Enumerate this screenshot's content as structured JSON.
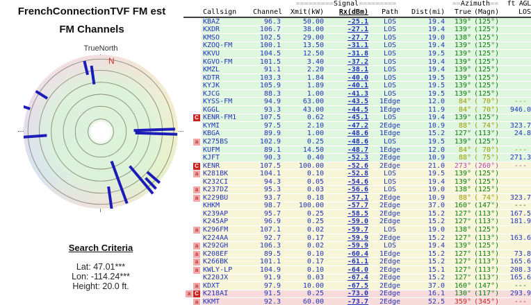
{
  "left_panel": {
    "title_line1": "FrenchConnectionTVF FM est",
    "title_line2": "FM Channels",
    "true_north_label": "TrueNorth",
    "north_marker": "N",
    "search": {
      "heading": "Search Criteria",
      "lat": "Lat: 47.01***",
      "lon": "Lon: -114.24***",
      "height": "Height: 20.0 ft."
    },
    "radar": {
      "rings": [
        0.17,
        0.34,
        0.5,
        0.66,
        0.82,
        0.97
      ],
      "needle_color": "#1c1cb8",
      "needles": [
        {
          "az": 347,
          "r0": 0.78,
          "r1": 0.97
        },
        {
          "az": 352,
          "r0": 0.64,
          "r1": 0.89
        },
        {
          "az": 302,
          "r0": 0.84,
          "r1": 1.02
        },
        {
          "az": 288,
          "r0": 0.99,
          "r1": 1.1
        },
        {
          "az": 266,
          "r0": 0.72,
          "r1": 1.06
        },
        {
          "az": 88,
          "r0": 0.44,
          "r1": 0.99
        },
        {
          "az": 92,
          "r0": 0.46,
          "r1": 1.02
        },
        {
          "az": 160,
          "r0": 0.42,
          "r1": 1.02
        },
        {
          "az": 140,
          "r0": 0.6,
          "r1": 1.08
        },
        {
          "az": 131,
          "r0": 0.82,
          "r1": 1.04
        },
        {
          "az": 136,
          "r0": 0.86,
          "r1": 1.06
        },
        {
          "az": 172,
          "r0": 0.74,
          "r1": 1.18
        }
      ]
    }
  },
  "table": {
    "header": {
      "signal_eq_left": "=========",
      "signal_label": "Signal",
      "signal_eq_right": "=========",
      "azimuth_eq_left": "==",
      "azimuth_label": "Azimuth",
      "azimuth_eq_right": "==",
      "ft_agl": "ft AGL",
      "columns": {
        "callsign": "Callsign",
        "channel": "Channel",
        "xmit": "Xmit(kW)",
        "rx": "Rx(dBm)",
        "path": "Path",
        "dist": "Dist(mi)",
        "true_az": "True",
        "magn": "(Magn)",
        "los": "LOS"
      }
    },
    "rows": [
      {
        "b": [],
        "cs": "KBAZ",
        "ch": "96.3",
        "xm": "50.00",
        "rx": "-25.1",
        "pa": "LOS",
        "di": "19.4",
        "tr": "139°",
        "mg": "(125°)",
        "agl": "",
        "t": "g",
        "ac": "green"
      },
      {
        "b": [],
        "cs": "KXDR",
        "ch": "106.7",
        "xm": "38.00",
        "rx": "-27.1",
        "pa": "LOS",
        "di": "19.4",
        "tr": "139°",
        "mg": "(125°)",
        "agl": "",
        "t": "g",
        "ac": "green"
      },
      {
        "b": [],
        "cs": "KMSO",
        "ch": "102.5",
        "xm": "29.00",
        "rx": "-27.7",
        "pa": "LOS",
        "di": "19.0",
        "tr": "138°",
        "mg": "(125°)",
        "agl": "",
        "t": "g",
        "ac": "green"
      },
      {
        "b": [],
        "cs": "KZOQ-FM",
        "ch": "100.1",
        "xm": "13.50",
        "rx": "-31.1",
        "pa": "LOS",
        "di": "19.4",
        "tr": "139°",
        "mg": "(125°)",
        "agl": "",
        "t": "g",
        "ac": "green"
      },
      {
        "b": [],
        "cs": "KKVU",
        "ch": "104.5",
        "xm": "12.50",
        "rx": "-31.8",
        "pa": "LOS",
        "di": "19.5",
        "tr": "139°",
        "mg": "(125°)",
        "agl": "",
        "t": "g",
        "ac": "green"
      },
      {
        "b": [],
        "cs": "KGVO-FM",
        "ch": "101.5",
        "xm": "3.40",
        "rx": "-37.2",
        "pa": "LOS",
        "di": "19.4",
        "tr": "139°",
        "mg": "(125°)",
        "agl": "",
        "t": "g",
        "ac": "green"
      },
      {
        "b": [],
        "cs": "KMZL",
        "ch": "91.1",
        "xm": "2.20",
        "rx": "-38.1",
        "pa": "LOS",
        "di": "19.4",
        "tr": "139°",
        "mg": "(125°)",
        "agl": "",
        "t": "g",
        "ac": "green"
      },
      {
        "b": [],
        "cs": "KDTR",
        "ch": "103.3",
        "xm": "1.84",
        "rx": "-40.0",
        "pa": "LOS",
        "di": "19.5",
        "tr": "139°",
        "mg": "(125°)",
        "agl": "",
        "t": "g",
        "ac": "green"
      },
      {
        "b": [],
        "cs": "KYJK",
        "ch": "105.9",
        "xm": "1.89",
        "rx": "-40.1",
        "pa": "LOS",
        "di": "19.5",
        "tr": "139°",
        "mg": "(125°)",
        "agl": "",
        "t": "g",
        "ac": "green"
      },
      {
        "b": [],
        "cs": "KJCG",
        "ch": "88.3",
        "xm": "1.00",
        "rx": "-41.3",
        "pa": "LOS",
        "di": "19.5",
        "tr": "139°",
        "mg": "(125°)",
        "agl": "",
        "t": "g",
        "ac": "green"
      },
      {
        "b": [],
        "cs": "KYSS-FM",
        "ch": "94.9",
        "xm": "63.00",
        "rx": "-43.5",
        "pa": "1Edge",
        "di": "12.0",
        "tr": "84°",
        "mg": "( 70°)",
        "agl": "--- ",
        "t": "g",
        "ac": "olive"
      },
      {
        "b": [],
        "cs": "KGGL",
        "ch": "93.3",
        "xm": "43.00",
        "rx": "-44.5",
        "pa": "1Edge",
        "di": "11.9",
        "tr": "84°",
        "mg": "( 70°)",
        "agl": "946.0",
        "t": "g",
        "ac": "olive"
      },
      {
        "b": [
          "C"
        ],
        "cs": "KENR-FM1",
        "ch": "107.5",
        "xm": "0.62",
        "rx": "-45.1",
        "pa": "LOS",
        "di": "19.4",
        "tr": "139°",
        "mg": "(125°)",
        "agl": "",
        "t": "g",
        "ac": "green"
      },
      {
        "b": [],
        "cs": "KYMI",
        "ch": "97.5",
        "xm": "2.10",
        "rx": "-47.2",
        "pa": "2Edge",
        "di": "10.9",
        "tr": "88°",
        "mg": "( 74°)",
        "agl": "323.7",
        "t": "g",
        "ac": "olive"
      },
      {
        "b": [],
        "cs": "KBGA",
        "ch": "89.9",
        "xm": "1.00",
        "rx": "-48.6",
        "pa": "1Edge",
        "di": "15.2",
        "tr": "127°",
        "mg": "(113°)",
        "agl": "24.8",
        "t": "g",
        "ac": "green"
      },
      {
        "b": [
          "a"
        ],
        "cs": "K275BS",
        "ch": "102.9",
        "xm": "0.25",
        "rx": "-48.6",
        "pa": "LOS",
        "di": "19.5",
        "tr": "139°",
        "mg": "(125°)",
        "agl": "",
        "t": "g",
        "ac": "green"
      },
      {
        "b": [],
        "cs": "KUFM",
        "ch": "89.1",
        "xm": "14.50",
        "rx": "-48.7",
        "pa": "1Edge",
        "di": "12.0",
        "tr": "84°",
        "mg": "( 70°)",
        "agl": "--- ",
        "t": "g",
        "ac": "olive"
      },
      {
        "b": [],
        "cs": "KJFT",
        "ch": "90.3",
        "xm": "0.40",
        "rx": "-52.3",
        "pa": "2Edge",
        "di": "10.9",
        "tr": "88°",
        "mg": "( 75°)",
        "agl": "271.3",
        "t": "g",
        "ac": "olive"
      },
      {
        "b": [
          "C"
        ],
        "cs": "KENR",
        "ch": "107.5",
        "xm": "100.00",
        "rx": "-52.6",
        "pa": "2Edge",
        "di": "21.0",
        "tr": "273°",
        "mg": "(260°)",
        "agl": "--- ",
        "t": "y",
        "ac": "magenta"
      },
      {
        "b": [
          "a"
        ],
        "cs": "K281BK",
        "ch": "104.1",
        "xm": "0.10",
        "rx": "-52.8",
        "pa": "LOS",
        "di": "19.5",
        "tr": "139°",
        "mg": "(125°)",
        "agl": "",
        "t": "y",
        "ac": "green"
      },
      {
        "b": [],
        "cs": "K232CI",
        "ch": "94.3",
        "xm": "0.05",
        "rx": "-54.6",
        "pa": "LOS",
        "di": "19.4",
        "tr": "139°",
        "mg": "(125°)",
        "agl": "",
        "t": "y",
        "ac": "green"
      },
      {
        "b": [
          "a"
        ],
        "cs": "K237DZ",
        "ch": "95.3",
        "xm": "0.03",
        "rx": "-56.6",
        "pa": "LOS",
        "di": "19.0",
        "tr": "138°",
        "mg": "(125°)",
        "agl": "",
        "t": "y",
        "ac": "green"
      },
      {
        "b": [
          "a"
        ],
        "cs": "K229BU",
        "ch": "93.7",
        "xm": "0.18",
        "rx": "-57.1",
        "pa": "2Edge",
        "di": "10.9",
        "tr": "88°",
        "mg": "( 74°)",
        "agl": "323.7",
        "t": "y",
        "ac": "olive"
      },
      {
        "b": [],
        "cs": "KHKM",
        "ch": "98.7",
        "xm": "100.00",
        "rx": "-57.7",
        "pa": "2Edge",
        "di": "37.0",
        "tr": "160°",
        "mg": "(147°)",
        "agl": "--- ",
        "t": "y",
        "ac": "green"
      },
      {
        "b": [],
        "cs": "K239AP",
        "ch": "95.7",
        "xm": "0.25",
        "rx": "-58.5",
        "pa": "2Edge",
        "di": "15.2",
        "tr": "127°",
        "mg": "(113°)",
        "agl": "167.5",
        "t": "y",
        "ac": "green"
      },
      {
        "b": [],
        "cs": "K245AP",
        "ch": "96.9",
        "xm": "0.25",
        "rx": "-59.0",
        "pa": "2Edge",
        "di": "15.2",
        "tr": "127°",
        "mg": "(113°)",
        "agl": "181.9",
        "t": "y",
        "ac": "green"
      },
      {
        "b": [
          "a"
        ],
        "cs": "K296FM",
        "ch": "107.1",
        "xm": "0.02",
        "rx": "-59.7",
        "pa": "LOS",
        "di": "19.0",
        "tr": "138°",
        "mg": "(125°)",
        "agl": "",
        "t": "y",
        "ac": "green"
      },
      {
        "b": [],
        "cs": "K224AA",
        "ch": "92.7",
        "xm": "0.17",
        "rx": "-59.9",
        "pa": "2Edge",
        "di": "15.2",
        "tr": "127°",
        "mg": "(113°)",
        "agl": "163.6",
        "t": "y",
        "ac": "green"
      },
      {
        "b": [
          "a"
        ],
        "cs": "K292GH",
        "ch": "106.3",
        "xm": "0.02",
        "rx": "-59.9",
        "pa": "LOS",
        "di": "19.4",
        "tr": "139°",
        "mg": "(125°)",
        "agl": "",
        "t": "y",
        "ac": "green"
      },
      {
        "b": [
          "a"
        ],
        "cs": "K208EF",
        "ch": "89.5",
        "xm": "0.10",
        "rx": "-60.4",
        "pa": "1Edge",
        "di": "15.2",
        "tr": "127°",
        "mg": "(113°)",
        "agl": "73.8",
        "t": "y",
        "ac": "green"
      },
      {
        "b": [
          "a"
        ],
        "cs": "K266BK",
        "ch": "101.1",
        "xm": "0.17",
        "rx": "-61.1",
        "pa": "2Edge",
        "di": "15.2",
        "tr": "127°",
        "mg": "(113°)",
        "agl": "165.6",
        "t": "y",
        "ac": "green"
      },
      {
        "b": [
          "a"
        ],
        "cs": "KWLY-LP",
        "ch": "104.9",
        "xm": "0.10",
        "rx": "-64.0",
        "pa": "2Edge",
        "di": "15.1",
        "tr": "127°",
        "mg": "(113°)",
        "agl": "208.3",
        "t": "y",
        "ac": "green"
      },
      {
        "b": [],
        "cs": "K220JX",
        "ch": "91.9",
        "xm": "0.03",
        "rx": "-67.4",
        "pa": "2Edge",
        "di": "15.2",
        "tr": "127°",
        "mg": "(113°)",
        "agl": "165.6",
        "t": "y",
        "ac": "green"
      },
      {
        "b": [
          "a"
        ],
        "cs": "KDXT",
        "ch": "97.9",
        "xm": "10.00",
        "rx": "-67.5",
        "pa": "2Edge",
        "di": "37.0",
        "tr": "160°",
        "mg": "(147°)",
        "agl": "--- ",
        "t": "y",
        "ac": "green"
      },
      {
        "b": [
          "a",
          "C"
        ],
        "cs": "K218AI",
        "ch": "91.5",
        "xm": "0.25",
        "rx": "-73.0",
        "pa": "2Edge",
        "di": "16.1",
        "tr": "130°",
        "mg": "(117°)",
        "agl": "293.9",
        "t": "p",
        "ac": "green"
      },
      {
        "b": [
          "a"
        ],
        "cs": "KKMT",
        "ch": "92.3",
        "xm": "60.00",
        "rx": "-73.7",
        "pa": "2Edge",
        "di": "52.5",
        "tr": "359°",
        "mg": "(345°)",
        "agl": "--- ",
        "t": "p",
        "ac": "red"
      }
    ]
  },
  "colors": {
    "value_blue": "#2233bb",
    "azimuth_green": "#0a7a0a",
    "azimuth_olive": "#9a9a00",
    "azimuth_magenta": "#bb44bb",
    "azimuth_red": "#cc2222",
    "row_green": "#dff6df",
    "row_yellow": "#f7f6d8",
    "row_pink": "#f8dcdc",
    "needle_blue": "#1c1cb8"
  }
}
